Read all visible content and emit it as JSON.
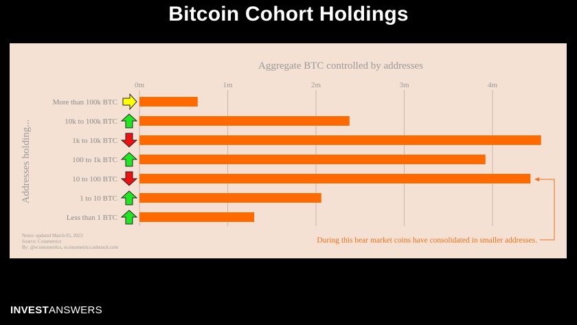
{
  "slide": {
    "title": "Bitcoin Cohort Holdings",
    "brand_bold": "INVEST",
    "brand_light": "ANSWERS"
  },
  "chart_data": {
    "type": "bar",
    "orientation": "horizontal",
    "title": "Aggregate BTC controlled by addresses",
    "ylabel": "Addresses holding...",
    "xlabel": "",
    "xlim": [
      0,
      4.6
    ],
    "x_ticks": [
      {
        "value": 0,
        "label": "0m"
      },
      {
        "value": 1,
        "label": "1m"
      },
      {
        "value": 2,
        "label": "2m"
      },
      {
        "value": 3,
        "label": "3m"
      },
      {
        "value": 4,
        "label": "4m"
      }
    ],
    "categories": [
      "More than 100k BTC",
      "10k to 100k BTC",
      "1k to 10k BTC",
      "100 to 1k BTC",
      "10 to 100 BTC",
      "1 to 10 BTC",
      "Less than 1 BTC"
    ],
    "values_millions_btc": [
      0.66,
      2.38,
      4.55,
      3.92,
      4.43,
      2.06,
      1.3
    ],
    "trend_arrows": [
      "right",
      "up",
      "down",
      "up",
      "down",
      "up",
      "up"
    ],
    "grid": true,
    "bar_color": "#ff6a00",
    "arrow_colors": {
      "up": "#22e622",
      "down": "#ee1111",
      "right": "#ffff00"
    },
    "annotation": "During this bear market coins have consolidated in smaller addresses.",
    "notes": [
      "Notes: updated March 05, 2023",
      "Source: Coinmetrics",
      "By: @ecoinometrics, ecoinometrics.substack.com"
    ]
  }
}
